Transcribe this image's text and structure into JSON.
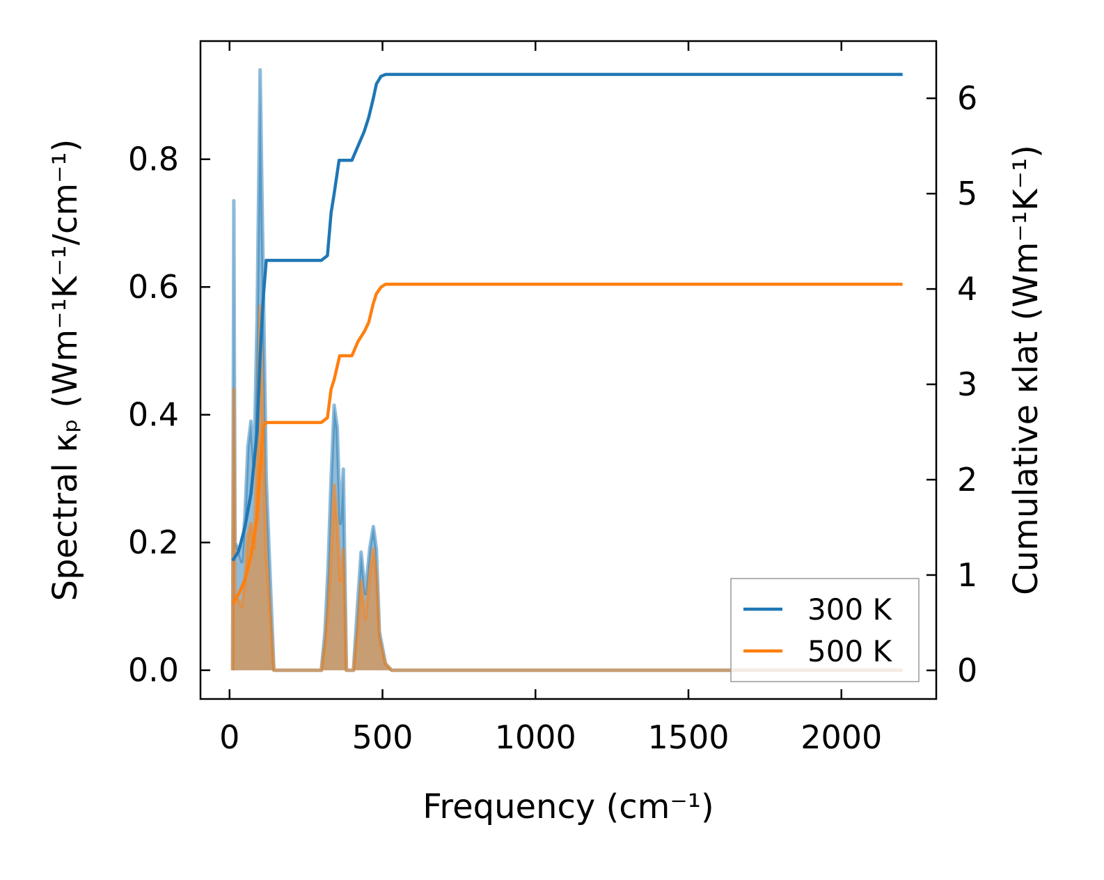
{
  "chart_data": {
    "type": "line",
    "title": "",
    "xlabel": "Frequency (cm⁻¹)",
    "ylabel_left": "Spectral κₚ (Wm⁻¹K⁻¹/cm⁻¹)",
    "ylabel_right": "Cumulative κlat (Wm⁻¹K⁻¹)",
    "xlim": [
      -95,
      2310
    ],
    "ylim_left": [
      -0.045,
      0.985
    ],
    "ylim_right": [
      -0.3,
      6.6
    ],
    "x_ticks": [
      0,
      500,
      1000,
      1500,
      2000
    ],
    "x_tick_labels": [
      "0",
      "500",
      "1000",
      "1500",
      "2000"
    ],
    "y_left_ticks": [
      0.0,
      0.2,
      0.4,
      0.6,
      0.8
    ],
    "y_left_tick_labels": [
      "0.0",
      "0.2",
      "0.4",
      "0.6",
      "0.8"
    ],
    "y_right_ticks": [
      0,
      1,
      2,
      3,
      4,
      5,
      6
    ],
    "y_right_tick_labels": [
      "0",
      "1",
      "2",
      "3",
      "4",
      "5",
      "6"
    ],
    "grid": false,
    "legend": {
      "position": "lower-right",
      "entries": [
        {
          "label": "300 K",
          "color": "#1f77b4"
        },
        {
          "label": "500 K",
          "color": "#ff7f0e"
        }
      ]
    },
    "series": [
      {
        "name": "300 K",
        "color": "#1f77b4",
        "spectral": [
          [
            10,
            0
          ],
          [
            14,
            0.735
          ],
          [
            18,
            0.2
          ],
          [
            28,
            0.19
          ],
          [
            40,
            0.17
          ],
          [
            50,
            0.24
          ],
          [
            60,
            0.35
          ],
          [
            70,
            0.39
          ],
          [
            80,
            0.32
          ],
          [
            90,
            0.55
          ],
          [
            100,
            0.94
          ],
          [
            110,
            0.62
          ],
          [
            120,
            0.3
          ],
          [
            130,
            0.18
          ],
          [
            145,
            0
          ],
          [
            300,
            0
          ],
          [
            312,
            0.06
          ],
          [
            322,
            0.16
          ],
          [
            332,
            0.3
          ],
          [
            342,
            0.415
          ],
          [
            352,
            0.38
          ],
          [
            362,
            0.23
          ],
          [
            372,
            0.315
          ],
          [
            382,
            0
          ],
          [
            405,
            0
          ],
          [
            418,
            0.1
          ],
          [
            430,
            0.185
          ],
          [
            444,
            0.12
          ],
          [
            458,
            0.19
          ],
          [
            470,
            0.225
          ],
          [
            480,
            0.19
          ],
          [
            490,
            0.06
          ],
          [
            510,
            0.01
          ],
          [
            530,
            0
          ],
          [
            2200,
            0
          ]
        ],
        "cumulative": [
          [
            10,
            1.15
          ],
          [
            30,
            1.25
          ],
          [
            50,
            1.5
          ],
          [
            70,
            1.85
          ],
          [
            90,
            2.5
          ],
          [
            100,
            3.3
          ],
          [
            110,
            3.9
          ],
          [
            120,
            4.3
          ],
          [
            150,
            4.3
          ],
          [
            300,
            4.3
          ],
          [
            320,
            4.35
          ],
          [
            332,
            4.8
          ],
          [
            342,
            5.0
          ],
          [
            358,
            5.35
          ],
          [
            372,
            5.35
          ],
          [
            400,
            5.35
          ],
          [
            420,
            5.5
          ],
          [
            440,
            5.65
          ],
          [
            455,
            5.8
          ],
          [
            470,
            6.0
          ],
          [
            480,
            6.15
          ],
          [
            495,
            6.23
          ],
          [
            510,
            6.25
          ],
          [
            2200,
            6.25
          ]
        ]
      },
      {
        "name": "500 K",
        "color": "#ff7f0e",
        "spectral": [
          [
            10,
            0
          ],
          [
            14,
            0.44
          ],
          [
            18,
            0.12
          ],
          [
            28,
            0.11
          ],
          [
            40,
            0.1
          ],
          [
            50,
            0.14
          ],
          [
            60,
            0.21
          ],
          [
            70,
            0.23
          ],
          [
            80,
            0.19
          ],
          [
            90,
            0.33
          ],
          [
            100,
            0.57
          ],
          [
            110,
            0.37
          ],
          [
            120,
            0.18
          ],
          [
            130,
            0.11
          ],
          [
            145,
            0
          ],
          [
            300,
            0
          ],
          [
            312,
            0.04
          ],
          [
            322,
            0.1
          ],
          [
            332,
            0.18
          ],
          [
            342,
            0.29
          ],
          [
            352,
            0.23
          ],
          [
            362,
            0.14
          ],
          [
            372,
            0.19
          ],
          [
            382,
            0
          ],
          [
            405,
            0
          ],
          [
            418,
            0.06
          ],
          [
            430,
            0.14
          ],
          [
            444,
            0.08
          ],
          [
            458,
            0.15
          ],
          [
            470,
            0.19
          ],
          [
            480,
            0.15
          ],
          [
            490,
            0.05
          ],
          [
            510,
            0.01
          ],
          [
            530,
            0
          ],
          [
            2200,
            0
          ]
        ],
        "cumulative": [
          [
            10,
            0.7
          ],
          [
            30,
            0.8
          ],
          [
            50,
            0.95
          ],
          [
            70,
            1.2
          ],
          [
            90,
            1.6
          ],
          [
            100,
            2.1
          ],
          [
            110,
            2.55
          ],
          [
            120,
            2.6
          ],
          [
            150,
            2.6
          ],
          [
            300,
            2.6
          ],
          [
            320,
            2.65
          ],
          [
            332,
            2.95
          ],
          [
            342,
            3.05
          ],
          [
            360,
            3.3
          ],
          [
            372,
            3.3
          ],
          [
            400,
            3.3
          ],
          [
            420,
            3.45
          ],
          [
            440,
            3.55
          ],
          [
            455,
            3.65
          ],
          [
            470,
            3.85
          ],
          [
            480,
            3.95
          ],
          [
            495,
            4.02
          ],
          [
            510,
            4.05
          ],
          [
            2200,
            4.05
          ]
        ]
      }
    ]
  }
}
